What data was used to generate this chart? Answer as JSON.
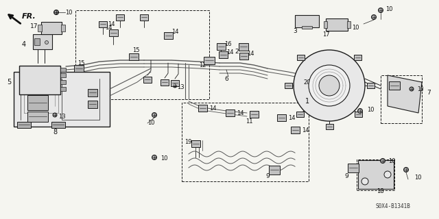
{
  "bg_color": "#f5f5f0",
  "diagram_code": "S0X4-B1341B",
  "fr_label": "FR.",
  "figsize": [
    6.4,
    3.2
  ],
  "dpi": 100,
  "lc": "#1a1a1a",
  "lc2": "#3a3a3a",
  "gray": "#888888",
  "lgray": "#cccccc",
  "dgray": "#555555"
}
